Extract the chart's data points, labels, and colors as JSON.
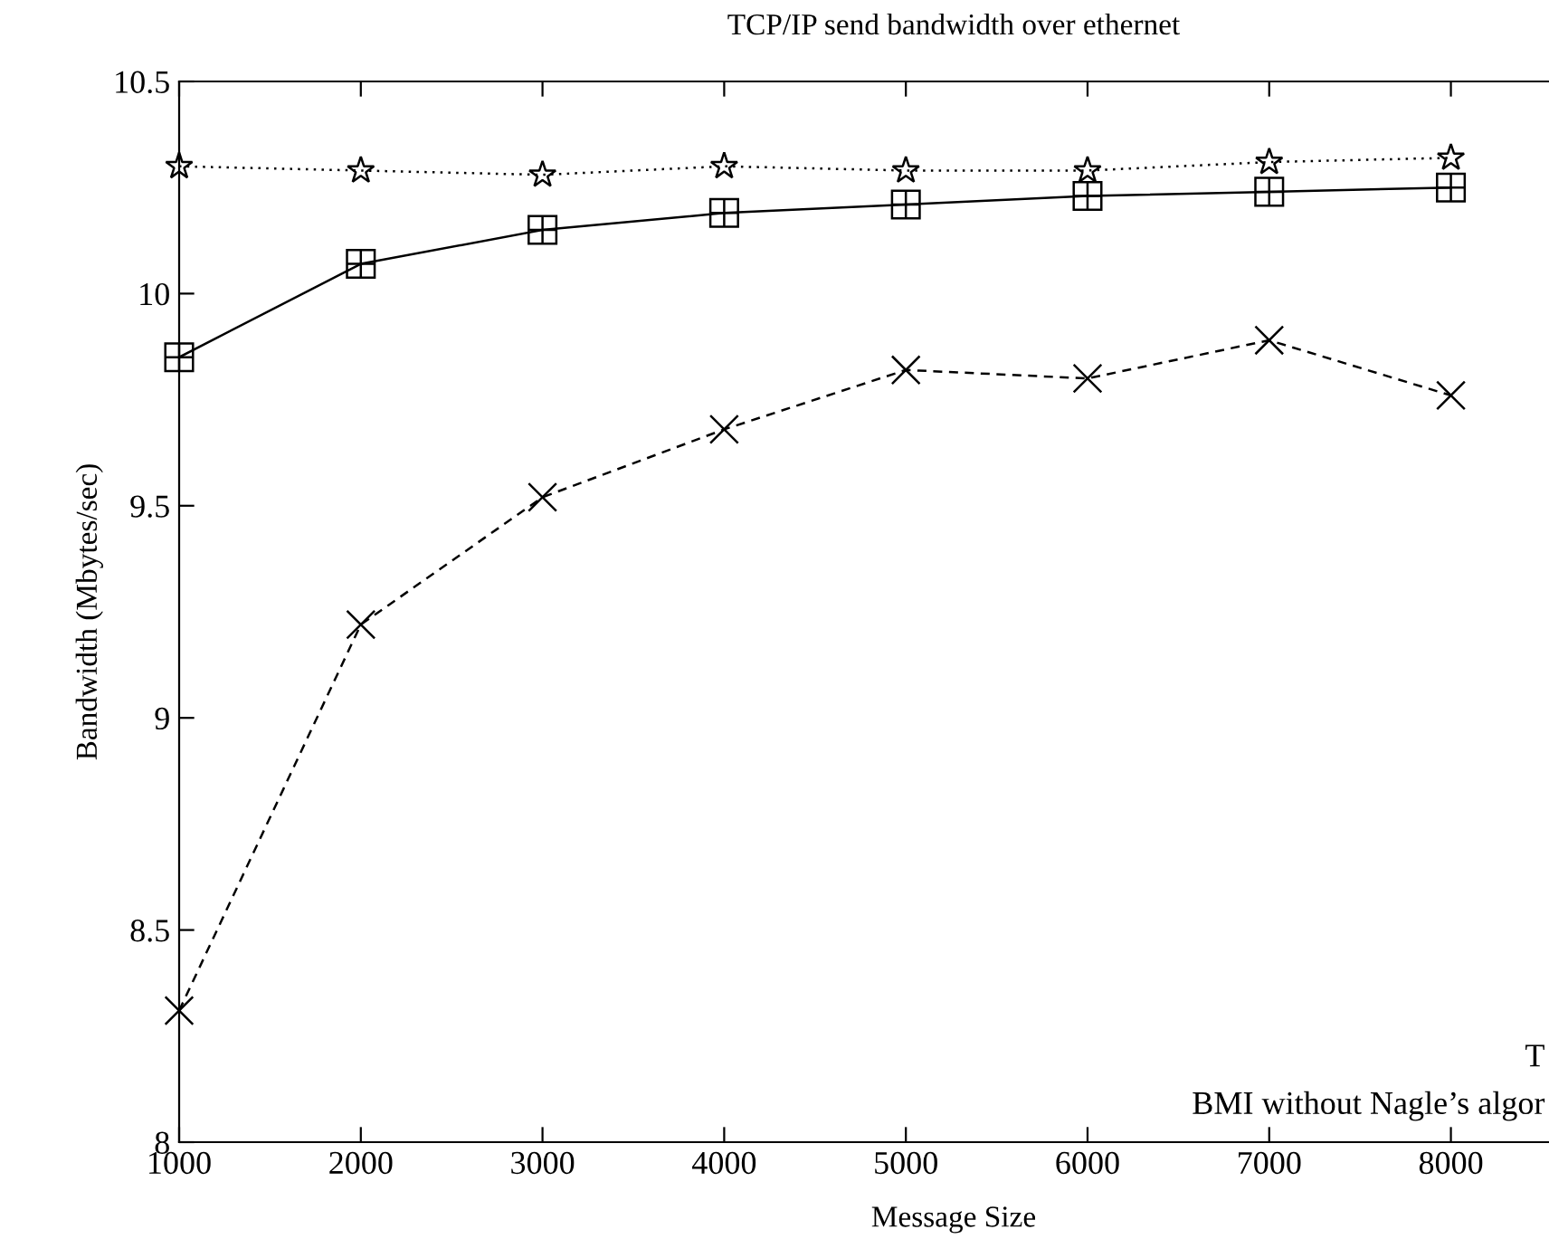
{
  "chart_data": {
    "type": "line",
    "title": "TCP/IP send bandwidth over ethernet",
    "xlabel": "Message Size",
    "ylabel": "Bandwidth (Mbytes/sec)",
    "x": [
      1000,
      2000,
      3000,
      4000,
      5000,
      6000,
      7000,
      8000
    ],
    "series": [
      {
        "color": "#000000",
        "marker": "star",
        "line_style": "dotted",
        "values": [
          10.3,
          10.29,
          10.28,
          10.3,
          10.29,
          10.29,
          10.31,
          10.32
        ]
      },
      {
        "color": "#000000",
        "marker": "square",
        "line_style": "solid",
        "values": [
          9.85,
          10.07,
          10.15,
          10.19,
          10.21,
          10.23,
          10.24,
          10.25
        ]
      },
      {
        "color": "#000000",
        "marker": "cross",
        "line_style": "dashed",
        "values": [
          8.31,
          9.22,
          9.52,
          9.68,
          9.82,
          9.8,
          9.89,
          9.76
        ]
      }
    ],
    "xlim": [
      1000,
      8540
    ],
    "ylim": [
      8,
      10.5
    ],
    "xticks": [
      1000,
      2000,
      3000,
      4000,
      5000,
      6000,
      7000,
      8000
    ],
    "yticks": [
      8,
      8.5,
      9,
      9.5,
      10,
      10.5
    ],
    "grid": false,
    "legend": false,
    "annotations": [
      "T",
      "BMI without Nagle’s algor"
    ]
  }
}
